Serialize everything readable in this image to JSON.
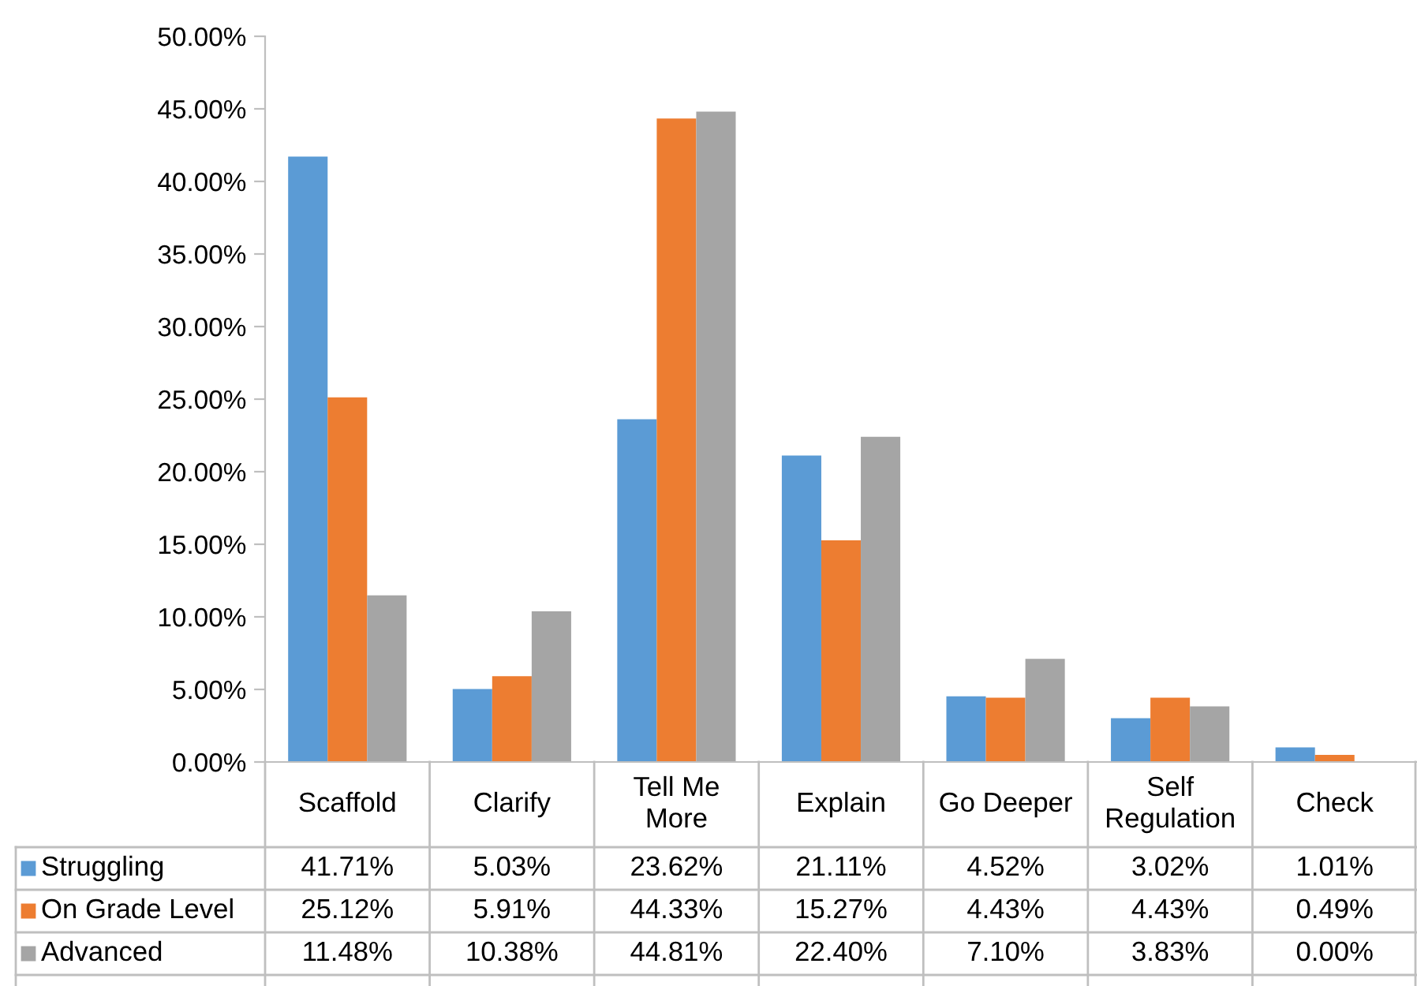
{
  "chart_data": {
    "type": "bar",
    "categories": [
      "Scaffold",
      "Clarify",
      "Tell Me More",
      "Explain",
      "Go Deeper",
      "Self Regulation",
      "Check"
    ],
    "series": [
      {
        "name": "Struggling",
        "color": "#5b9bd5",
        "values": [
          41.71,
          5.03,
          23.62,
          21.11,
          4.52,
          3.02,
          1.01
        ],
        "value_labels": [
          "41.71%",
          "5.03%",
          "23.62%",
          "21.11%",
          "4.52%",
          "3.02%",
          "1.01%"
        ]
      },
      {
        "name": "On Grade Level",
        "color": "#ed7d31",
        "values": [
          25.12,
          5.91,
          44.33,
          15.27,
          4.43,
          4.43,
          0.49
        ],
        "value_labels": [
          "25.12%",
          "5.91%",
          "44.33%",
          "15.27%",
          "4.43%",
          "4.43%",
          "0.49%"
        ]
      },
      {
        "name": "Advanced",
        "color": "#a5a5a5",
        "values": [
          11.48,
          10.38,
          44.81,
          22.4,
          7.1,
          3.83,
          0.0
        ],
        "value_labels": [
          "11.48%",
          "10.38%",
          "44.81%",
          "22.40%",
          "7.10%",
          "3.83%",
          "0.00%"
        ]
      }
    ],
    "ylim": [
      0,
      50
    ],
    "yticks": [
      {
        "value": 0,
        "label": "0.00%"
      },
      {
        "value": 5,
        "label": "5.00%"
      },
      {
        "value": 10,
        "label": "10.00%"
      },
      {
        "value": 15,
        "label": "15.00%"
      },
      {
        "value": 20,
        "label": "20.00%"
      },
      {
        "value": 25,
        "label": "25.00%"
      },
      {
        "value": 30,
        "label": "30.00%"
      },
      {
        "value": 35,
        "label": "35.00%"
      },
      {
        "value": 40,
        "label": "40.00%"
      },
      {
        "value": 45,
        "label": "45.00%"
      },
      {
        "value": 50,
        "label": "50.00%"
      }
    ],
    "grid": false,
    "legend": "bottom"
  }
}
